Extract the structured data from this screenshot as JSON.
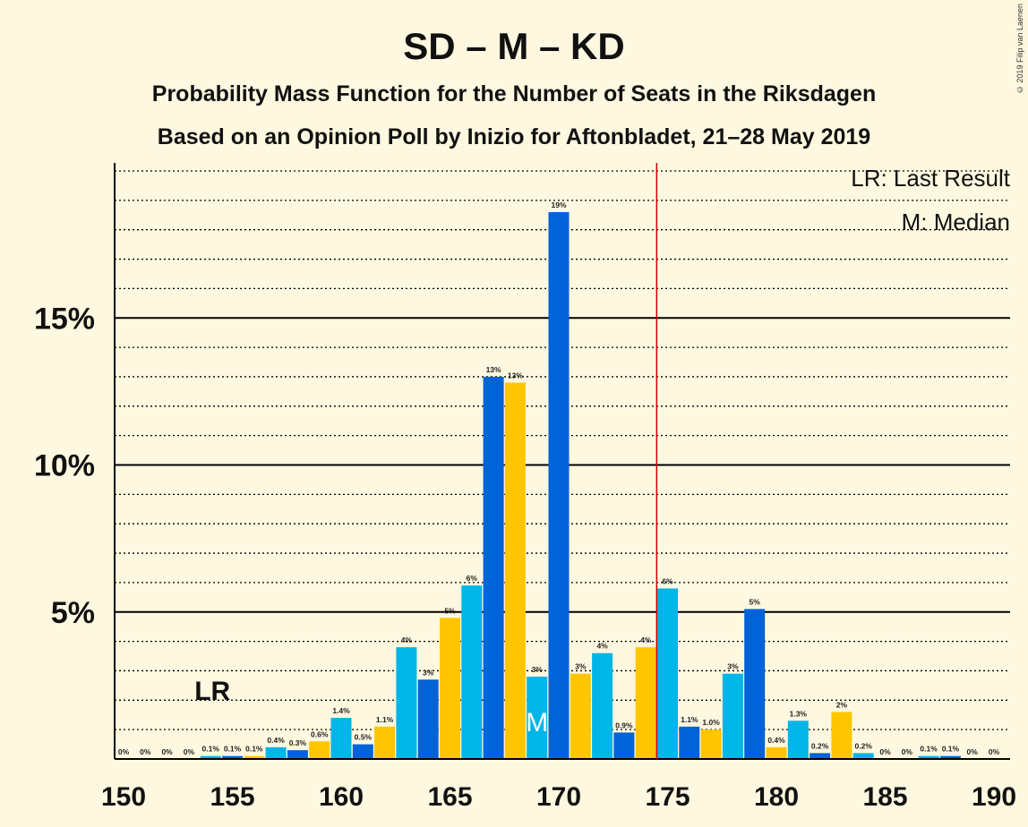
{
  "header": {
    "title": "SD – M – KD",
    "subtitle1": "Probability Mass Function for the Number of Seats in the Riksdagen",
    "subtitle2": "Based on an Opinion Poll by Inizio for Aftonbladet, 21–28 May 2019"
  },
  "copyright": "© 2019 Filip van Laenen",
  "legend": {
    "last_result": "LR: Last Result",
    "median": "M: Median"
  },
  "markers": {
    "last_result_label": "LR",
    "median_label": "M"
  },
  "colors": {
    "background": "#fff8e0",
    "cyan": "#00b5e8",
    "blue": "#0063d7",
    "yellow": "#ffc600",
    "majority_line": "#cc0000"
  },
  "chart_data": {
    "type": "bar",
    "x": [
      150,
      151,
      152,
      153,
      154,
      155,
      156,
      157,
      158,
      159,
      160,
      161,
      162,
      163,
      164,
      165,
      166,
      167,
      168,
      169,
      170,
      171,
      172,
      173,
      174,
      175,
      176,
      177,
      178,
      179,
      180,
      181,
      182,
      183,
      184,
      185,
      186,
      187,
      188,
      189,
      190
    ],
    "values": [
      0,
      0,
      0,
      0,
      0.1,
      0.1,
      0.1,
      0.4,
      0.3,
      0.6,
      1.4,
      0.5,
      1.1,
      3.8,
      2.7,
      4.8,
      5.9,
      13.0,
      12.8,
      2.8,
      18.6,
      2.9,
      3.6,
      0.9,
      3.8,
      5.8,
      1.1,
      1.0,
      2.9,
      5.1,
      0.4,
      1.3,
      0.2,
      1.6,
      0.2,
      0,
      0,
      0.1,
      0.1,
      0,
      0
    ],
    "labels": [
      "0%",
      "0%",
      "0%",
      "0%",
      "0.1%",
      "0.1%",
      "0.1%",
      "0.4%",
      "0.3%",
      "0.6%",
      "1.4%",
      "0.5%",
      "1.1%",
      "4%",
      "3%",
      "5%",
      "6%",
      "13%",
      "13%",
      "3%",
      "19%",
      "3%",
      "4%",
      "0.9%",
      "4%",
      "6%",
      "1.1%",
      "1.0%",
      "3%",
      "5%",
      "0.4%",
      "1.3%",
      "0.2%",
      "2%",
      "0.2%",
      "0%",
      "0%",
      "0.1%",
      "0.1%",
      "0%",
      "0%"
    ],
    "colors": [
      "cyan",
      "blue",
      "yellow",
      "cyan",
      "cyan",
      "blue",
      "yellow",
      "cyan",
      "blue",
      "yellow",
      "cyan",
      "blue",
      "yellow",
      "cyan",
      "blue",
      "yellow",
      "cyan",
      "blue",
      "yellow",
      "cyan",
      "blue",
      "yellow",
      "cyan",
      "blue",
      "yellow",
      "cyan",
      "blue",
      "yellow",
      "cyan",
      "blue",
      "yellow",
      "cyan",
      "blue",
      "yellow",
      "cyan",
      "blue",
      "yellow",
      "cyan",
      "blue",
      "yellow",
      "cyan"
    ],
    "xticks": [
      150,
      155,
      160,
      165,
      170,
      175,
      180,
      185,
      190
    ],
    "xtick_labels": [
      "150",
      "155",
      "160",
      "165",
      "170",
      "175",
      "180",
      "185",
      "190"
    ],
    "yticks": [
      5,
      10,
      15
    ],
    "ytick_labels": [
      "5%",
      "10%",
      "15%"
    ],
    "ylim": [
      0,
      20
    ],
    "xlim": [
      150,
      190
    ],
    "last_result": 154,
    "median": 169,
    "majority": 175
  }
}
